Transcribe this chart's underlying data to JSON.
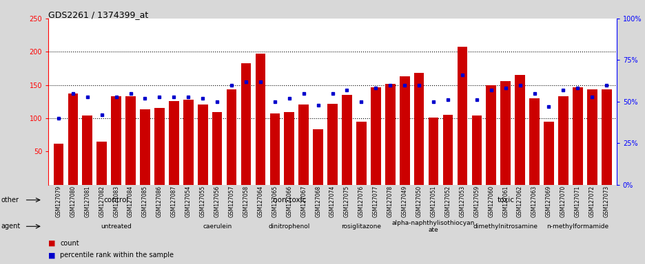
{
  "title": "GDS2261 / 1374399_at",
  "samples": [
    "GSM127079",
    "GSM127080",
    "GSM127081",
    "GSM127082",
    "GSM127083",
    "GSM127084",
    "GSM127085",
    "GSM127086",
    "GSM127087",
    "GSM127054",
    "GSM127055",
    "GSM127056",
    "GSM127057",
    "GSM127058",
    "GSM127064",
    "GSM127065",
    "GSM127066",
    "GSM127067",
    "GSM127068",
    "GSM127074",
    "GSM127075",
    "GSM127076",
    "GSM127077",
    "GSM127078",
    "GSM127049",
    "GSM127050",
    "GSM127051",
    "GSM127052",
    "GSM127053",
    "GSM127059",
    "GSM127060",
    "GSM127061",
    "GSM127062",
    "GSM127063",
    "GSM127069",
    "GSM127070",
    "GSM127071",
    "GSM127072",
    "GSM127073"
  ],
  "counts": [
    62,
    137,
    104,
    65,
    133,
    133,
    113,
    116,
    126,
    128,
    121,
    109,
    143,
    183,
    197,
    107,
    109,
    121,
    83,
    122,
    135,
    95,
    147,
    152,
    163,
    168,
    101,
    105,
    207,
    104,
    150,
    156,
    165,
    130,
    95,
    133,
    147,
    143,
    143
  ],
  "percentiles": [
    40,
    55,
    53,
    42,
    53,
    55,
    52,
    53,
    53,
    53,
    52,
    50,
    60,
    62,
    62,
    50,
    52,
    55,
    48,
    55,
    57,
    50,
    58,
    60,
    60,
    60,
    50,
    51,
    66,
    51,
    57,
    58,
    60,
    55,
    47,
    57,
    58,
    53,
    60
  ],
  "bar_color": "#cc0000",
  "dot_color": "#0000cc",
  "ylim_left": [
    0,
    250
  ],
  "ylim_right": [
    0,
    100
  ],
  "yticks_left": [
    50,
    100,
    150,
    200,
    250
  ],
  "yticks_right": [
    0,
    25,
    50,
    75,
    100
  ],
  "hlines": [
    100,
    150,
    200
  ],
  "groups_other": [
    {
      "label": "control",
      "start": 0,
      "end": 9,
      "color": "#99ee99"
    },
    {
      "label": "non-toxic",
      "start": 9,
      "end": 24,
      "color": "#bbffbb"
    },
    {
      "label": "toxic",
      "start": 24,
      "end": 39,
      "color": "#44cc44"
    }
  ],
  "groups_agent": [
    {
      "label": "untreated",
      "start": 0,
      "end": 9,
      "color": "#ffddff"
    },
    {
      "label": "caerulein",
      "start": 9,
      "end": 14,
      "color": "#ffaaff"
    },
    {
      "label": "dinitrophenol",
      "start": 14,
      "end": 19,
      "color": "#ffddff"
    },
    {
      "label": "rosiglitazone",
      "start": 19,
      "end": 24,
      "color": "#ffaaff"
    },
    {
      "label": "alpha-naphthylisothiocyan\nate",
      "start": 24,
      "end": 29,
      "color": "#dd88dd"
    },
    {
      "label": "dimethylnitrosamine",
      "start": 29,
      "end": 34,
      "color": "#ff44ff"
    },
    {
      "label": "n-methylformamide",
      "start": 34,
      "end": 39,
      "color": "#dd88dd"
    }
  ],
  "bg_color": "#d8d8d8",
  "plot_bg": "#ffffff",
  "row_other_colors": [
    "#99ee99",
    "#bbffbb",
    "#44cc44"
  ],
  "row_agent_colors": [
    "#ffddff",
    "#ffaaff",
    "#ffddff",
    "#ffaaff",
    "#dd88dd",
    "#ff44ff",
    "#dd88dd"
  ]
}
